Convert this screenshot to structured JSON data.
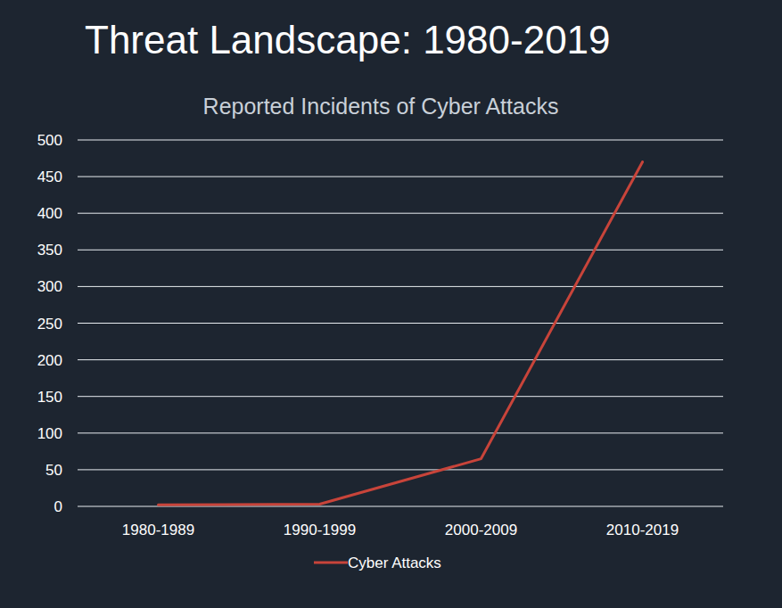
{
  "chart_data": {
    "type": "line",
    "title": "Threat Landscape: 1980-2019",
    "subtitle": "Reported Incidents of Cyber Attacks",
    "categories": [
      "1980-1989",
      "1990-1999",
      "2000-2009",
      "2010-2019"
    ],
    "series": [
      {
        "name": "Cyber Attacks",
        "color": "#c8443a",
        "values": [
          2,
          3,
          65,
          470
        ]
      }
    ],
    "ylim": [
      0,
      500
    ],
    "yticks": [
      0,
      50,
      100,
      150,
      200,
      250,
      300,
      350,
      400,
      450,
      500
    ],
    "grid": true,
    "legend": "bottom"
  }
}
